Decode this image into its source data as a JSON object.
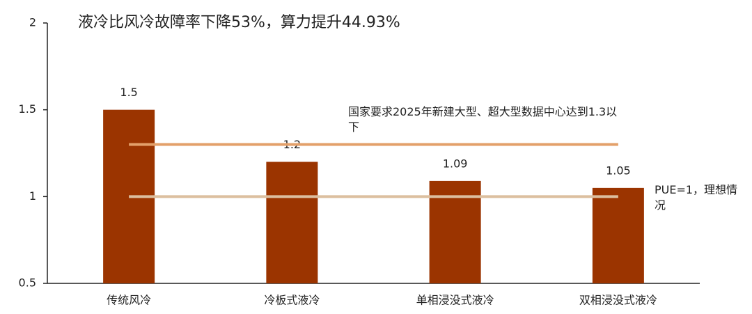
{
  "chart_data": {
    "type": "bar",
    "title": "液冷比风冷故障率下降53%，算力提升44.93%",
    "categories": [
      "传统风冷",
      "冷板式液冷",
      "单相浸没式液冷",
      "双相浸没式液冷"
    ],
    "values": [
      1.5,
      1.2,
      1.09,
      1.05
    ],
    "color": "#9b3400",
    "ylim": [
      0.5,
      2
    ],
    "yticks": [
      0.5,
      1,
      1.5,
      2
    ],
    "reference_lines": [
      {
        "value": 1.3,
        "label": "国家要求2025年新建大型、超大型数据中心达到1.3以下",
        "color": "#e3a06a"
      },
      {
        "value": 1,
        "label": "PUE=1，理想情况",
        "color": "#dcbf9f"
      }
    ]
  }
}
